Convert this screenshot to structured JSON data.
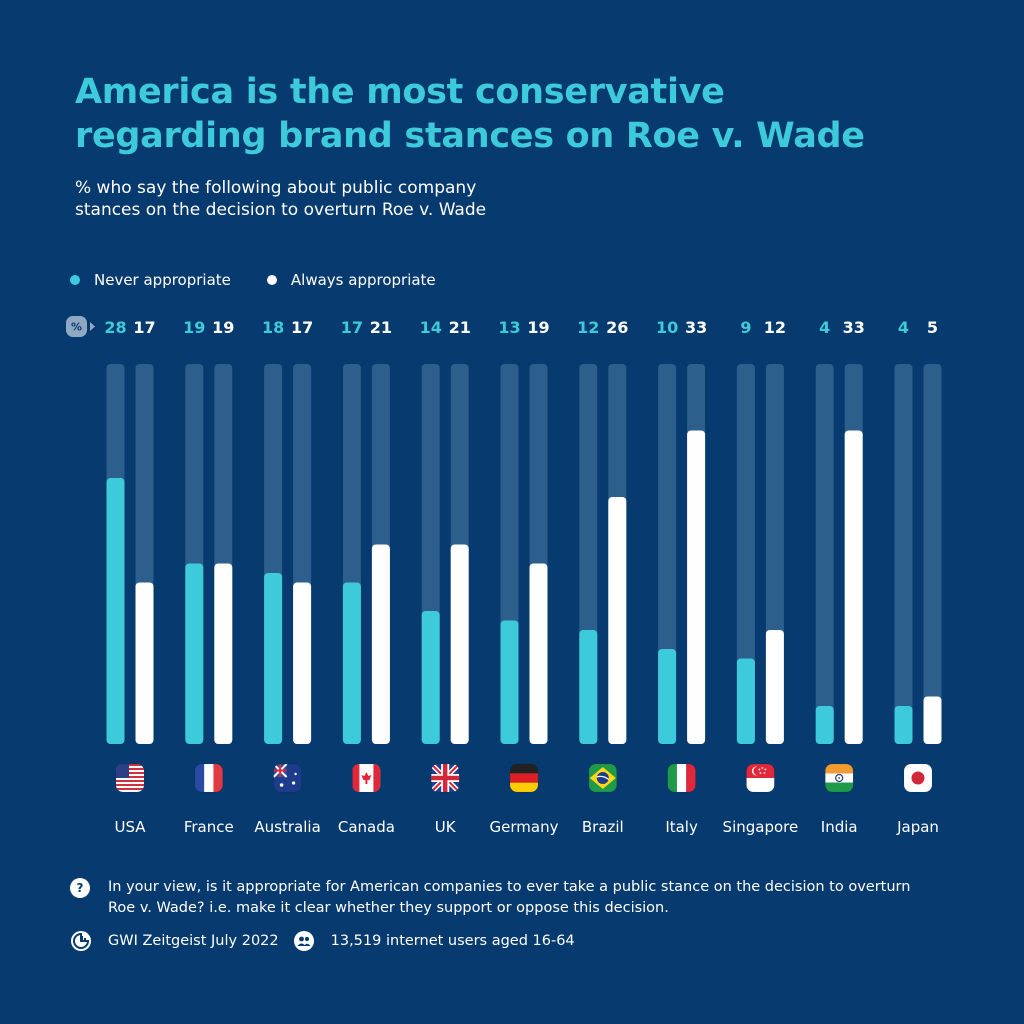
{
  "title": {
    "line1": "America is the most conservative",
    "line2": "regarding brand stances on Roe v. Wade"
  },
  "subtitle": {
    "line1": "% who say the following about public company",
    "line2": "stances on the decision to overturn Roe v. Wade"
  },
  "colors": {
    "background": "#073a6e",
    "never": "#3dcbdc",
    "always": "#ffffff",
    "track": "#2d5f8c",
    "title": "#3dcbdc"
  },
  "unit_badge": "%",
  "question": {
    "line1": "In your view, is it appropriate for American companies to ever take a public stance on the decision to overturn",
    "line2": "Roe v. Wade? i.e. make it clear whether they support or oppose this decision."
  },
  "source": "GWI Zeitgeist July 2022",
  "sample": "13,519 internet users aged 16-64",
  "chart_data": {
    "type": "bar",
    "categories": [
      "USA",
      "France",
      "Australia",
      "Canada",
      "UK",
      "Germany",
      "Brazil",
      "Italy",
      "Singapore",
      "India",
      "Japan"
    ],
    "series": [
      {
        "name": "Never appropriate",
        "color": "#3dcbdc",
        "values": [
          28,
          19,
          18,
          17,
          14,
          13,
          12,
          10,
          9,
          4,
          4
        ]
      },
      {
        "name": "Always appropriate",
        "color": "#ffffff",
        "values": [
          17,
          19,
          17,
          21,
          21,
          19,
          26,
          33,
          12,
          33,
          5
        ]
      }
    ],
    "ylim": [
      0,
      40
    ],
    "grid": false,
    "legend": "top-left",
    "flags": [
      "usa-flag-icon",
      "france-flag-icon",
      "australia-flag-icon",
      "canada-flag-icon",
      "uk-flag-icon",
      "germany-flag-icon",
      "brazil-flag-icon",
      "italy-flag-icon",
      "singapore-flag-icon",
      "india-flag-icon",
      "japan-flag-icon"
    ]
  }
}
